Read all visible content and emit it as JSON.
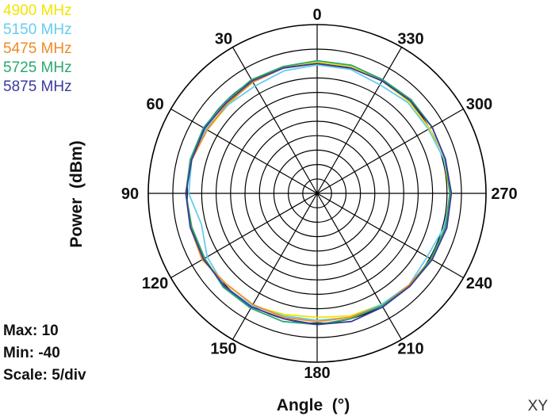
{
  "chart_data": {
    "type": "polar-line",
    "angle_labels": [
      "0",
      "30",
      "60",
      "90",
      "120",
      "150",
      "180",
      "210",
      "240",
      "270",
      "300",
      "330"
    ],
    "angles_deg": [
      0,
      15,
      30,
      45,
      60,
      75,
      90,
      105,
      120,
      135,
      150,
      165,
      180,
      195,
      210,
      225,
      240,
      255,
      270,
      285,
      300,
      315,
      330,
      345
    ],
    "rlim": [
      -40,
      10
    ],
    "r_step": 5,
    "grid": true,
    "legend_position": "top-left",
    "xlabel": "Angle  (°)",
    "ylabel": "Power  (dBm)",
    "series": [
      {
        "name": "4900 MHz",
        "color": "#f2e400",
        "values": [
          5.5,
          5.5,
          5.0,
          3.5,
          4.0,
          5.5,
          5.5,
          5.0,
          5.0,
          5.5,
          5.0,
          3.5,
          3.0,
          4.0,
          4.5,
          5.5,
          6.0,
          6.0,
          6.0,
          5.5,
          5.0,
          5.0,
          5.0,
          5.5
        ]
      },
      {
        "name": "5150 MHz",
        "color": "#66ccee",
        "values": [
          4.5,
          4.0,
          3.0,
          3.5,
          4.5,
          5.0,
          4.5,
          1.5,
          4.0,
          5.5,
          5.0,
          4.0,
          4.0,
          4.5,
          4.5,
          5.0,
          4.0,
          5.5,
          6.5,
          5.5,
          4.5,
          4.5,
          3.5,
          4.5
        ]
      },
      {
        "name": "5475 MHz",
        "color": "#f08a24",
        "values": [
          5.0,
          5.0,
          4.5,
          4.0,
          4.0,
          5.0,
          5.5,
          5.5,
          6.0,
          4.5,
          4.5,
          4.5,
          4.5,
          4.5,
          5.0,
          5.0,
          5.5,
          6.0,
          6.5,
          6.0,
          6.0,
          5.5,
          5.0,
          5.0
        ]
      },
      {
        "name": "5725 MHz",
        "color": "#2aa870",
        "values": [
          6.0,
          5.5,
          5.5,
          5.0,
          5.5,
          5.5,
          5.5,
          5.0,
          5.0,
          6.0,
          6.0,
          6.0,
          5.5,
          5.0,
          5.0,
          5.5,
          5.5,
          6.0,
          6.0,
          6.0,
          6.0,
          6.0,
          5.5,
          6.0
        ]
      },
      {
        "name": "5875 MHz",
        "color": "#3a3a9e",
        "values": [
          5.0,
          5.0,
          5.0,
          4.5,
          5.0,
          5.0,
          5.5,
          5.5,
          5.5,
          5.5,
          5.5,
          5.0,
          5.5,
          6.0,
          5.5,
          5.5,
          6.0,
          6.5,
          6.5,
          6.0,
          6.0,
          5.5,
          5.0,
          5.0
        ]
      }
    ]
  },
  "stats": {
    "max": "Max: 10",
    "min": "Min: -40",
    "scale": "Scale: 5/div"
  },
  "corner_label": "XY"
}
